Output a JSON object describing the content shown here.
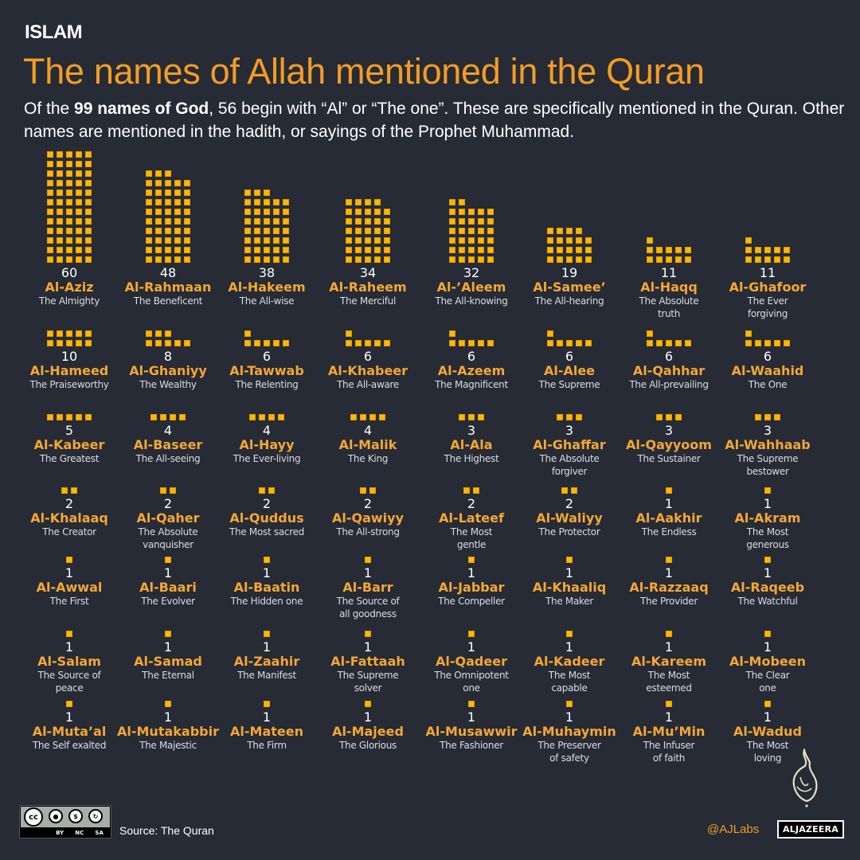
{
  "header": {
    "kicker": "ISLAM",
    "title": "The names of Allah mentioned in the Quran",
    "subtitle_pre": "Of the ",
    "subtitle_bold": "99 names of God",
    "subtitle_post": ", 56 begin with “Al” or “The one”. These are specifically mentioned in the Quran. Other names are mentioned in the hadith, or sayings of the Prophet Muhammad."
  },
  "colors": {
    "background": "#262b36",
    "accent_orange": "#f39c24",
    "name_orange": "#f5a733",
    "square_yellow": "#ffb703",
    "text_white": "#ffffff",
    "text_grey": "#d9dce2"
  },
  "chart_data": {
    "type": "waffle",
    "title": "The names of Allah mentioned in the Quran",
    "unit": "mentions in the Quran (1 square = 1 mention)",
    "squares_per_row": 5,
    "items": [
      {
        "name": "Al-Aziz",
        "meaning": "The Almighty",
        "count": 60
      },
      {
        "name": "Al-Rahmaan",
        "meaning": "The Beneficent",
        "count": 48
      },
      {
        "name": "Al-Hakeem",
        "meaning": "The All-wise",
        "count": 38
      },
      {
        "name": "Al-Raheem",
        "meaning": "The Merciful",
        "count": 34
      },
      {
        "name": "Al-’Aleem",
        "meaning": "The All-knowing",
        "count": 32
      },
      {
        "name": "Al-Samee’",
        "meaning": "The All-hearing",
        "count": 19
      },
      {
        "name": "Al-Haqq",
        "meaning": "The Absolute\ntruth",
        "count": 11
      },
      {
        "name": "Al-Ghafoor",
        "meaning": "The Ever\nforgiving",
        "count": 11
      },
      {
        "name": "Al-Hameed",
        "meaning": "The Praiseworthy",
        "count": 10
      },
      {
        "name": "Al-Ghaniyy",
        "meaning": "The Wealthy",
        "count": 8
      },
      {
        "name": "Al-Tawwab",
        "meaning": "The Relenting",
        "count": 6
      },
      {
        "name": "Al-Khabeer",
        "meaning": "The All-aware",
        "count": 6
      },
      {
        "name": "Al-Azeem",
        "meaning": "The Magnificent",
        "count": 6
      },
      {
        "name": "Al-Alee",
        "meaning": "The Supreme",
        "count": 6
      },
      {
        "name": "Al-Qahhar",
        "meaning": "The All-prevailing",
        "count": 6
      },
      {
        "name": "Al-Waahid",
        "meaning": "The One",
        "count": 6
      },
      {
        "name": "Al-Kabeer",
        "meaning": "The Greatest",
        "count": 5
      },
      {
        "name": "Al-Baseer",
        "meaning": "The All-seeing",
        "count": 4
      },
      {
        "name": "Al-Hayy",
        "meaning": "The Ever-living",
        "count": 4
      },
      {
        "name": "Al-Malik",
        "meaning": "The King",
        "count": 4
      },
      {
        "name": "Al-Ala",
        "meaning": "The Highest",
        "count": 3
      },
      {
        "name": "Al-Ghaffar",
        "meaning": "The Absolute\nforgiver",
        "count": 3
      },
      {
        "name": "Al-Qayyoom",
        "meaning": "The Sustainer",
        "count": 3
      },
      {
        "name": "Al-Wahhaab",
        "meaning": "The Supreme\nbestower",
        "count": 3
      },
      {
        "name": "Al-Khalaaq",
        "meaning": "The Creator",
        "count": 2
      },
      {
        "name": "Al-Qaher",
        "meaning": "The Absolute\nvanquisher",
        "count": 2
      },
      {
        "name": "Al-Quddus",
        "meaning": "The Most sacred",
        "count": 2
      },
      {
        "name": "Al-Qawiyy",
        "meaning": "The All-strong",
        "count": 2
      },
      {
        "name": "Al-Lateef",
        "meaning": "The Most\ngentle",
        "count": 2
      },
      {
        "name": "Al-Waliyy",
        "meaning": "The Protector",
        "count": 2
      },
      {
        "name": "Al-Aakhir",
        "meaning": "The Endless",
        "count": 1
      },
      {
        "name": "Al-Akram",
        "meaning": "The Most\ngenerous",
        "count": 1
      },
      {
        "name": "Al-Awwal",
        "meaning": "The First",
        "count": 1
      },
      {
        "name": "Al-Baari",
        "meaning": "The Evolver",
        "count": 1
      },
      {
        "name": "Al-Baatin",
        "meaning": "The Hidden one",
        "count": 1
      },
      {
        "name": "Al-Barr",
        "meaning": "The Source of\nall goodness",
        "count": 1
      },
      {
        "name": "Al-Jabbar",
        "meaning": "The Compeller",
        "count": 1
      },
      {
        "name": "Al-Khaaliq",
        "meaning": "The Maker",
        "count": 1
      },
      {
        "name": "Al-Razzaaq",
        "meaning": "The Provider",
        "count": 1
      },
      {
        "name": "Al-Raqeeb",
        "meaning": "The Watchful",
        "count": 1
      },
      {
        "name": "Al-Salam",
        "meaning": "The Source of\npeace",
        "count": 1
      },
      {
        "name": "Al-Samad",
        "meaning": "The Eternal",
        "count": 1
      },
      {
        "name": "Al-Zaahir",
        "meaning": "The Manifest",
        "count": 1
      },
      {
        "name": "Al-Fattaah",
        "meaning": "The Supreme\nsolver",
        "count": 1
      },
      {
        "name": "Al-Qadeer",
        "meaning": "The Omnipotent\none",
        "count": 1
      },
      {
        "name": "Al-Kadeer",
        "meaning": "The Most\ncapable",
        "count": 1
      },
      {
        "name": "Al-Kareem",
        "meaning": "The Most\nesteemed",
        "count": 1
      },
      {
        "name": "Al-Mobeen",
        "meaning": "The Clear\none",
        "count": 1
      },
      {
        "name": "Al-Muta’al",
        "meaning": "The Self exalted",
        "count": 1
      },
      {
        "name": "Al-Mutakabbir",
        "meaning": "The Majestic",
        "count": 1
      },
      {
        "name": "Al-Mateen",
        "meaning": "The Firm",
        "count": 1
      },
      {
        "name": "Al-Majeed",
        "meaning": "The Glorious",
        "count": 1
      },
      {
        "name": "Al-Musawwir",
        "meaning": "The Fashioner",
        "count": 1
      },
      {
        "name": "Al-Muhaymin",
        "meaning": "The Preserver\nof safety",
        "count": 1
      },
      {
        "name": "Al-Mu’Min",
        "meaning": "The Infuser\nof faith",
        "count": 1
      },
      {
        "name": "Al-Wadud",
        "meaning": "The Most\nloving",
        "count": 1
      }
    ]
  },
  "footer": {
    "license_icon": "creative-commons-by-nc-sa",
    "license_main": "cc",
    "license_labels": [
      "BY",
      "NC",
      "SA"
    ],
    "source": "Source: The Quran",
    "handle": "@AJLabs",
    "brand": "ALJAZEERA",
    "brand_emblem_icon": "aljazeera-calligraphy-logo"
  }
}
